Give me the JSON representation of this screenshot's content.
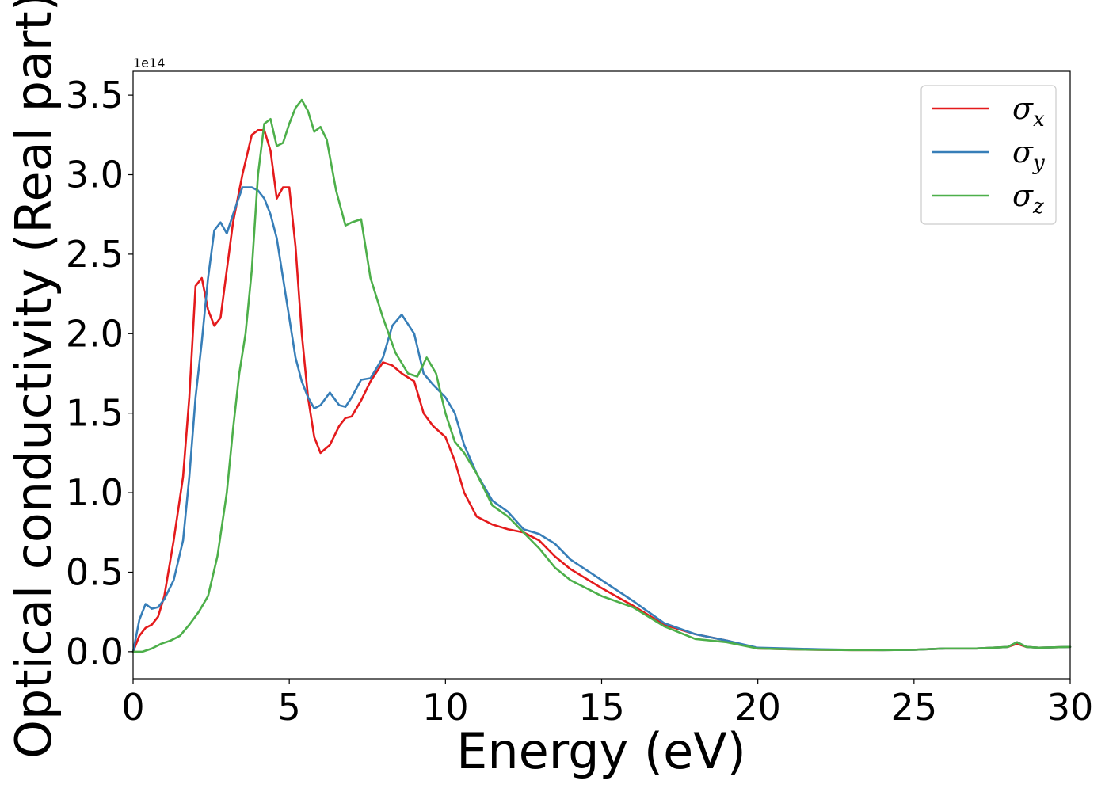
{
  "chart_data": {
    "type": "line",
    "title": "",
    "xlabel": "Energy (eV)",
    "ylabel": "Optical conductivity (Real part)",
    "offset_text": "1e14",
    "xlim": [
      0,
      30
    ],
    "ylim": [
      -0.17,
      3.65
    ],
    "xticks": [
      0,
      5,
      10,
      15,
      20,
      25,
      30
    ],
    "yticks": [
      0.0,
      0.5,
      1.0,
      1.5,
      2.0,
      2.5,
      3.0,
      3.5
    ],
    "ytick_labels": [
      "0.0",
      "0.5",
      "1.0",
      "1.5",
      "2.0",
      "2.5",
      "3.0",
      "3.5"
    ],
    "grid": false,
    "legend_position": "top-right",
    "series": [
      {
        "name": "σx",
        "symbol": "σ",
        "sub": "x",
        "color": "#e41a1c",
        "x": [
          0,
          0.2,
          0.4,
          0.6,
          0.8,
          1.0,
          1.3,
          1.6,
          1.8,
          2.0,
          2.2,
          2.4,
          2.6,
          2.8,
          3.0,
          3.2,
          3.5,
          3.8,
          4.0,
          4.2,
          4.4,
          4.6,
          4.8,
          5.0,
          5.2,
          5.4,
          5.6,
          5.8,
          6.0,
          6.3,
          6.6,
          6.8,
          7.0,
          7.3,
          7.6,
          8.0,
          8.3,
          8.6,
          9.0,
          9.3,
          9.6,
          10.0,
          10.3,
          10.6,
          11.0,
          11.5,
          12.0,
          12.5,
          13.0,
          13.5,
          14.0,
          15.0,
          16.0,
          17.0,
          18.0,
          19.0,
          20.0,
          21.0,
          22.0,
          23.0,
          24.0,
          25.0,
          26.0,
          27.0,
          28.0,
          28.3,
          28.6,
          29.0,
          30.0
        ],
        "y": [
          0.0,
          0.1,
          0.15,
          0.17,
          0.22,
          0.35,
          0.7,
          1.1,
          1.6,
          2.3,
          2.35,
          2.15,
          2.05,
          2.1,
          2.4,
          2.7,
          3.0,
          3.25,
          3.28,
          3.28,
          3.15,
          2.85,
          2.92,
          2.92,
          2.55,
          2.0,
          1.6,
          1.35,
          1.25,
          1.3,
          1.42,
          1.47,
          1.48,
          1.58,
          1.7,
          1.82,
          1.8,
          1.75,
          1.7,
          1.5,
          1.42,
          1.35,
          1.2,
          1.0,
          0.85,
          0.8,
          0.77,
          0.75,
          0.7,
          0.6,
          0.52,
          0.4,
          0.29,
          0.17,
          0.11,
          0.07,
          0.02,
          0.015,
          0.012,
          0.01,
          0.01,
          0.012,
          0.02,
          0.02,
          0.03,
          0.05,
          0.03,
          0.025,
          0.03
        ]
      },
      {
        "name": "σy",
        "symbol": "σ",
        "sub": "y",
        "color": "#377eb8",
        "x": [
          0,
          0.2,
          0.4,
          0.6,
          0.8,
          1.0,
          1.3,
          1.6,
          1.8,
          2.0,
          2.2,
          2.4,
          2.6,
          2.8,
          3.0,
          3.2,
          3.5,
          3.8,
          4.0,
          4.2,
          4.4,
          4.6,
          4.8,
          5.0,
          5.2,
          5.4,
          5.6,
          5.8,
          6.0,
          6.3,
          6.6,
          6.8,
          7.0,
          7.3,
          7.6,
          8.0,
          8.3,
          8.6,
          9.0,
          9.3,
          9.6,
          10.0,
          10.3,
          10.6,
          11.0,
          11.5,
          12.0,
          12.5,
          13.0,
          13.5,
          14.0,
          15.0,
          16.0,
          17.0,
          18.0,
          19.0,
          20.0,
          21.0,
          22.0,
          23.0,
          24.0,
          25.0,
          26.0,
          27.0,
          28.0,
          28.3,
          28.6,
          29.0,
          30.0
        ],
        "y": [
          0.0,
          0.2,
          0.3,
          0.27,
          0.28,
          0.33,
          0.45,
          0.7,
          1.1,
          1.6,
          1.95,
          2.35,
          2.65,
          2.7,
          2.63,
          2.75,
          2.92,
          2.92,
          2.9,
          2.85,
          2.75,
          2.6,
          2.35,
          2.1,
          1.85,
          1.7,
          1.6,
          1.53,
          1.55,
          1.63,
          1.55,
          1.54,
          1.6,
          1.71,
          1.72,
          1.85,
          2.05,
          2.12,
          2.0,
          1.75,
          1.68,
          1.6,
          1.5,
          1.3,
          1.12,
          0.95,
          0.88,
          0.77,
          0.74,
          0.68,
          0.58,
          0.45,
          0.32,
          0.18,
          0.11,
          0.07,
          0.025,
          0.02,
          0.015,
          0.012,
          0.01,
          0.012,
          0.02,
          0.02,
          0.03,
          0.06,
          0.03,
          0.025,
          0.03
        ]
      },
      {
        "name": "σz",
        "symbol": "σ",
        "sub": "z",
        "color": "#4daf4a",
        "x": [
          0,
          0.3,
          0.6,
          0.9,
          1.2,
          1.5,
          1.8,
          2.1,
          2.4,
          2.7,
          3.0,
          3.2,
          3.4,
          3.6,
          3.8,
          4.0,
          4.2,
          4.4,
          4.6,
          4.8,
          5.0,
          5.2,
          5.4,
          5.6,
          5.8,
          6.0,
          6.2,
          6.5,
          6.8,
          7.0,
          7.3,
          7.6,
          8.0,
          8.4,
          8.8,
          9.1,
          9.4,
          9.7,
          10.0,
          10.3,
          10.6,
          11.0,
          11.5,
          12.0,
          12.5,
          13.0,
          13.5,
          14.0,
          15.0,
          16.0,
          17.0,
          18.0,
          19.0,
          20.0,
          21.0,
          22.0,
          23.0,
          24.0,
          25.0,
          26.0,
          27.0,
          28.0,
          28.3,
          28.6,
          29.0,
          30.0
        ],
        "y": [
          0.0,
          0.0,
          0.02,
          0.05,
          0.07,
          0.1,
          0.17,
          0.25,
          0.35,
          0.6,
          1.0,
          1.4,
          1.75,
          2.0,
          2.4,
          3.0,
          3.32,
          3.35,
          3.18,
          3.2,
          3.32,
          3.42,
          3.47,
          3.4,
          3.27,
          3.3,
          3.22,
          2.9,
          2.68,
          2.7,
          2.72,
          2.35,
          2.1,
          1.88,
          1.75,
          1.73,
          1.85,
          1.75,
          1.5,
          1.32,
          1.25,
          1.12,
          0.92,
          0.85,
          0.75,
          0.65,
          0.53,
          0.45,
          0.35,
          0.28,
          0.16,
          0.08,
          0.06,
          0.02,
          0.015,
          0.012,
          0.01,
          0.01,
          0.012,
          0.02,
          0.02,
          0.03,
          0.06,
          0.03,
          0.025,
          0.03
        ]
      }
    ]
  }
}
